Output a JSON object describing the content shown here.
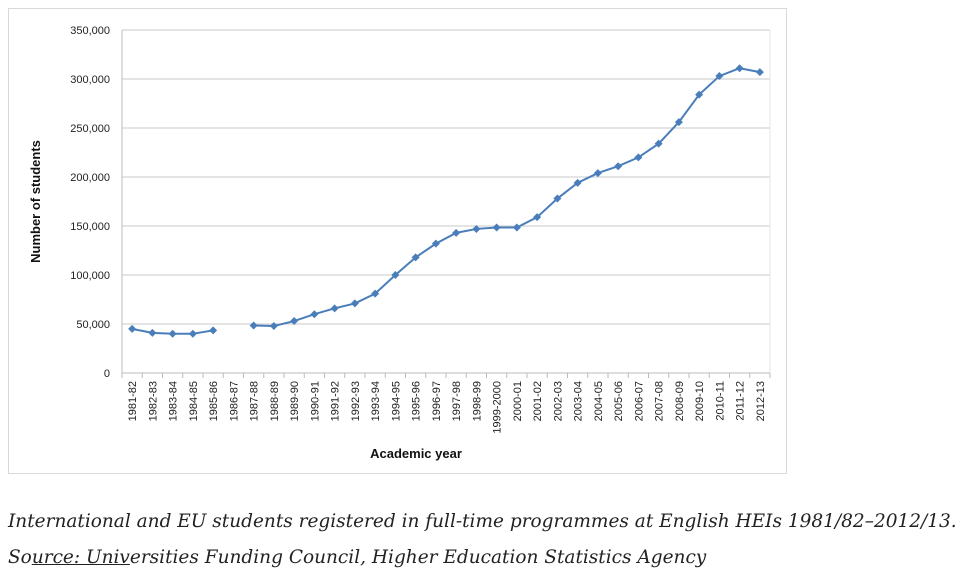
{
  "chart_data": {
    "type": "line",
    "title": "",
    "xlabel": "Academic year",
    "ylabel": "Number of students",
    "ylim": [
      0,
      350000
    ],
    "yticks": [
      0,
      50000,
      100000,
      150000,
      200000,
      250000,
      300000,
      350000
    ],
    "ytick_labels": [
      "0",
      "50,000",
      "100,000",
      "150,000",
      "200,000",
      "250,000",
      "300,000",
      "350,000"
    ],
    "grid": true,
    "color": "#4a7ebb",
    "categories": [
      "1981-82",
      "1982-83",
      "1983-84",
      "1984-85",
      "1985-86",
      "1986-87",
      "1987-88",
      "1988-89",
      "1989-90",
      "1990-91",
      "1991-92",
      "1992-93",
      "1993-94",
      "1994-95",
      "1995-96",
      "1996-97",
      "1997-98",
      "1998-99",
      "1999-2000",
      "2000-01",
      "2001-02",
      "2002-03",
      "2003-04",
      "2004-05",
      "2005-06",
      "2006-07",
      "2007-08",
      "2008-09",
      "2009-10",
      "2010-11",
      "2011-12",
      "2012-13"
    ],
    "series": [
      {
        "name": "Students",
        "values": [
          45000,
          41000,
          40000,
          40000,
          43500,
          null,
          48500,
          48000,
          53000,
          60000,
          66000,
          71000,
          81000,
          100000,
          118000,
          132000,
          143000,
          147000,
          148500,
          148500,
          159000,
          178000,
          194000,
          204000,
          211000,
          220000,
          234000,
          256000,
          284000,
          303000,
          311000,
          307000
        ]
      }
    ]
  },
  "caption": {
    "line1": "International and EU students registered in full-time programmes at English HEIs 1981/82–2012/13.",
    "source_prefix": "So",
    "source_link": "urce: Univ",
    "source_rest": "ersities Funding Council, Higher Education Statistics Agency"
  }
}
